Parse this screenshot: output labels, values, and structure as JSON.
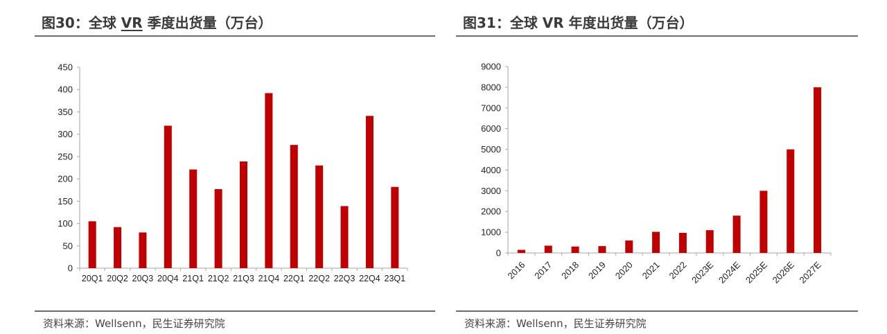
{
  "left": {
    "title_prefix": "图30：全球 ",
    "title_vr": "VR",
    "title_suffix": " 季度出货量（万台）",
    "source": "资料来源：Wellsenn，民生证券研究院"
  },
  "right": {
    "title": "图31：全球 VR 年度出货量（万台）",
    "source": "资料来源：Wellsenn，民生证券研究院"
  },
  "colors": {
    "bar": "#c00000",
    "axis": "#a6a6a6",
    "rule": "#6b6b6b"
  },
  "chart_data": [
    {
      "type": "bar",
      "title": "图30：全球 VR 季度出货量（万台）",
      "categories": [
        "20Q1",
        "20Q2",
        "20Q3",
        "20Q4",
        "21Q1",
        "21Q2",
        "21Q3",
        "21Q4",
        "22Q1",
        "22Q2",
        "22Q3",
        "22Q4",
        "23Q1"
      ],
      "values": [
        105,
        92,
        80,
        319,
        221,
        177,
        239,
        392,
        276,
        230,
        139,
        341,
        182
      ],
      "ylim": [
        0,
        450
      ],
      "yticks": [
        0,
        50,
        100,
        150,
        200,
        250,
        300,
        350,
        400,
        450
      ],
      "xlabel": "",
      "ylabel": "",
      "grid": false,
      "legend": "none"
    },
    {
      "type": "bar",
      "title": "图31：全球 VR 年度出货量（万台）",
      "categories": [
        "2016",
        "2017",
        "2018",
        "2019",
        "2020",
        "2021",
        "2022",
        "2023E",
        "2024E",
        "2025E",
        "2026E",
        "2027E"
      ],
      "values": [
        150,
        350,
        310,
        330,
        600,
        1020,
        970,
        1100,
        1800,
        3000,
        5000,
        8000
      ],
      "ylim": [
        0,
        9000
      ],
      "yticks": [
        0,
        1000,
        2000,
        3000,
        4000,
        5000,
        6000,
        7000,
        8000,
        9000
      ],
      "xlabel": "",
      "ylabel": "",
      "grid": false,
      "legend": "none"
    }
  ]
}
